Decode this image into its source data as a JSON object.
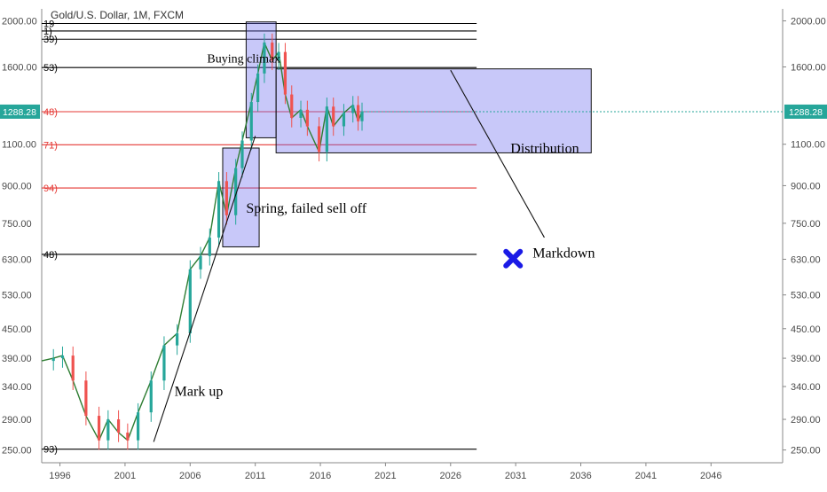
{
  "header": {
    "symbol_title": "Gold/U.S. Dollar, 1M, FXCM"
  },
  "chart_data": {
    "type": "candlestick",
    "title": "Gold/U.S. Dollar, 1M, FXCM",
    "y_scale": "log",
    "ylim": [
      235,
      2120
    ],
    "xlim": [
      1994.6,
      2051.5
    ],
    "y_ticks": [
      2000,
      1600,
      1100,
      900,
      750,
      630,
      530,
      450,
      390,
      340,
      290,
      250
    ],
    "y_tick_labels": [
      "2000.00",
      "1600.00",
      "1100.00",
      "900.00",
      "750.00",
      "630.00",
      "530.00",
      "450.00",
      "390.00",
      "340.00",
      "290.00",
      "250.00"
    ],
    "x_ticks": [
      1996,
      2001,
      2006,
      2011,
      2016,
      2021,
      2026,
      2031,
      2036,
      2041,
      2046
    ],
    "x_tick_labels": [
      "1996",
      "2001",
      "2006",
      "2011",
      "2016",
      "2021",
      "2026",
      "2031",
      "2036",
      "2041",
      "2046"
    ],
    "current_price": 1288.28,
    "current_price_label": "1288.28",
    "grid": false,
    "price_path": [
      [
        1994.6,
        385
      ],
      [
        1995.5,
        390
      ],
      [
        1996.2,
        395
      ],
      [
        1997.0,
        350
      ],
      [
        1998.0,
        295
      ],
      [
        1999.0,
        262
      ],
      [
        1999.7,
        290
      ],
      [
        2000.5,
        272
      ],
      [
        2001.2,
        262
      ],
      [
        2002.0,
        300
      ],
      [
        2003.0,
        350
      ],
      [
        2004.0,
        415
      ],
      [
        2005.0,
        440
      ],
      [
        2006.0,
        600
      ],
      [
        2006.8,
        640
      ],
      [
        2007.5,
        700
      ],
      [
        2008.2,
        920
      ],
      [
        2008.8,
        780
      ],
      [
        2009.5,
        980
      ],
      [
        2010.0,
        1120
      ],
      [
        2010.7,
        1350
      ],
      [
        2011.2,
        1550
      ],
      [
        2011.7,
        1800
      ],
      [
        2012.3,
        1650
      ],
      [
        2012.8,
        1720
      ],
      [
        2013.3,
        1400
      ],
      [
        2013.8,
        1250
      ],
      [
        2014.5,
        1300
      ],
      [
        2015.0,
        1200
      ],
      [
        2015.9,
        1060
      ],
      [
        2016.5,
        1320
      ],
      [
        2017.0,
        1200
      ],
      [
        2017.8,
        1280
      ],
      [
        2018.5,
        1330
      ],
      [
        2018.9,
        1230
      ],
      [
        2019.2,
        1288
      ]
    ],
    "horizontal_levels": [
      {
        "price": 1975,
        "color": "#000000",
        "edge_label": "19"
      },
      {
        "price": 1905,
        "color": "#000000",
        "edge_label": "1)"
      },
      {
        "price": 1830,
        "color": "#000000",
        "edge_label": "39)"
      },
      {
        "price": 1595,
        "color": "#000000",
        "edge_label": "53)"
      },
      {
        "price": 1288,
        "color": "#e53935",
        "edge_label": "48)"
      },
      {
        "price": 1097,
        "color": "#e53935",
        "edge_label": "71)"
      },
      {
        "price": 890,
        "color": "#e53935",
        "edge_label": "94)"
      },
      {
        "price": 645,
        "color": "#000000",
        "edge_label": "48)"
      },
      {
        "price": 251,
        "color": "#000000",
        "edge_label": "93)"
      }
    ],
    "zones": [
      {
        "x0": 2008.5,
        "x1": 2011.3,
        "p0": 1080,
        "p1": 669,
        "label": "spring-box"
      },
      {
        "x0": 2010.3,
        "x1": 2012.6,
        "p0": 1990,
        "p1": 1135,
        "label": "climax-box"
      },
      {
        "x0": 2012.6,
        "x1": 2036.8,
        "p0": 1585,
        "p1": 1055,
        "label": "distribution-box"
      }
    ],
    "annotations": [
      {
        "text": "Buying climax",
        "x": 2007.3,
        "p": 1635,
        "size": 14
      },
      {
        "text": "Spring, failed sell off",
        "x": 2010.3,
        "p": 790,
        "size": 16
      },
      {
        "text": "Distribution",
        "x": 2030.6,
        "p": 1055,
        "size": 16
      },
      {
        "text": "Markdown",
        "x": 2032.3,
        "p": 635,
        "size": 16
      },
      {
        "text": "Mark up",
        "x": 2004.8,
        "p": 325,
        "size": 16
      }
    ],
    "trend_lines": [
      {
        "from": [
          2003.2,
          260
        ],
        "to": [
          2011.0,
          1145
        ],
        "label": "mark-up-line"
      },
      {
        "from": [
          2026.0,
          1575
        ],
        "to": [
          2033.2,
          700
        ],
        "label": "markdown-line"
      }
    ],
    "markers": [
      {
        "shape": "x",
        "x": 2030.8,
        "p": 632,
        "color": "#1a1ae6",
        "label": "markdown-target"
      }
    ]
  }
}
